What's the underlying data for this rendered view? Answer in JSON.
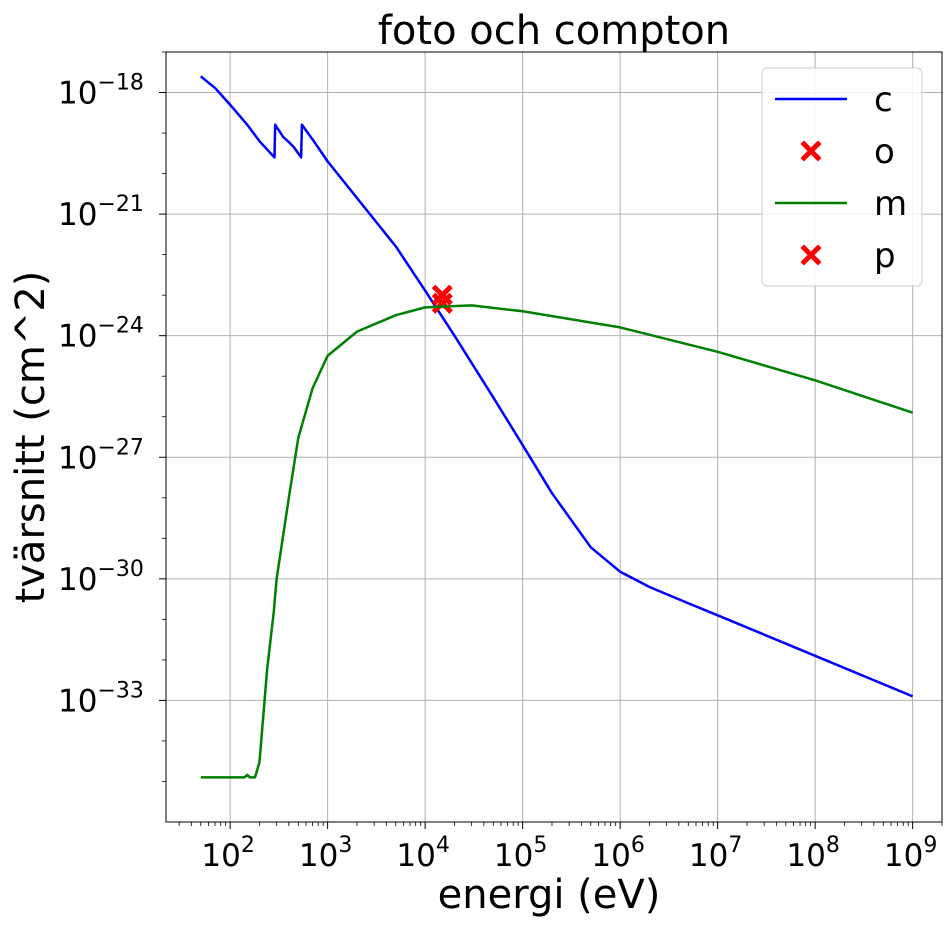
{
  "chart_data": {
    "type": "line",
    "title": "foto och compton",
    "xlabel": "energi (eV)",
    "ylabel": "tvärsnitt (cm^2)",
    "xscale": "log",
    "yscale": "log",
    "xlim": [
      22,
      2000000000
    ],
    "ylim": [
      1e-36,
      1e-17
    ],
    "grid": true,
    "legend_position": "top-right",
    "x_ticks": [
      {
        "base": "10",
        "exp": "2",
        "value": 100
      },
      {
        "base": "10",
        "exp": "3",
        "value": 1000
      },
      {
        "base": "10",
        "exp": "4",
        "value": 10000
      },
      {
        "base": "10",
        "exp": "5",
        "value": 100000
      },
      {
        "base": "10",
        "exp": "6",
        "value": 1000000
      },
      {
        "base": "10",
        "exp": "7",
        "value": 10000000
      },
      {
        "base": "10",
        "exp": "8",
        "value": 100000000
      },
      {
        "base": "10",
        "exp": "9",
        "value": 1000000000
      }
    ],
    "y_ticks": [
      {
        "base": "10",
        "exp": "−18",
        "value": 1e-18
      },
      {
        "base": "10",
        "exp": "−21",
        "value": 1e-21
      },
      {
        "base": "10",
        "exp": "−24",
        "value": 1e-24
      },
      {
        "base": "10",
        "exp": "−27",
        "value": 1e-27
      },
      {
        "base": "10",
        "exp": "−30",
        "value": 1e-30
      },
      {
        "base": "10",
        "exp": "−33",
        "value": 1e-33
      }
    ],
    "series": [
      {
        "name": "c",
        "kind": "line",
        "color": "#0000ff",
        "points": [
          [
            50,
            2.5e-18
          ],
          [
            70,
            1.3e-18
          ],
          [
            100,
            5e-19
          ],
          [
            150,
            1.6e-19
          ],
          [
            200,
            6.3e-20
          ],
          [
            285,
            2.5e-20
          ],
          [
            290,
            1.6e-19
          ],
          [
            350,
            8e-20
          ],
          [
            400,
            6e-20
          ],
          [
            450,
            4.5e-20
          ],
          [
            535,
            2.5e-20
          ],
          [
            545,
            1.6e-19
          ],
          [
            700,
            7e-20
          ],
          [
            1000,
            2e-20
          ],
          [
            2000,
            2.5e-21
          ],
          [
            5000,
            1.6e-22
          ],
          [
            10000,
            1.3e-23
          ],
          [
            20000,
            1e-24
          ],
          [
            50000,
            3e-26
          ],
          [
            100000,
            2e-27
          ],
          [
            200000,
            1.3e-28
          ],
          [
            500000,
            6e-30
          ],
          [
            1000000,
            1.5e-30
          ],
          [
            2000000,
            6.3e-31
          ],
          [
            5000000,
            2.5e-31
          ],
          [
            10000000,
            1.26e-31
          ],
          [
            100000000,
            1.26e-32
          ],
          [
            1000000000,
            1.26e-33
          ]
        ]
      },
      {
        "name": "o",
        "kind": "scatter",
        "color": "#ff0000",
        "points": [
          [
            15000,
            6.3e-24
          ]
        ]
      },
      {
        "name": "m",
        "kind": "line",
        "color": "#008000",
        "points": [
          [
            50,
            1.26e-35
          ],
          [
            100,
            1.26e-35
          ],
          [
            140,
            1.26e-35
          ],
          [
            150,
            1.45e-35
          ],
          [
            160,
            1.26e-35
          ],
          [
            180,
            1.26e-35
          ],
          [
            200,
            3e-35
          ],
          [
            240,
            6e-33
          ],
          [
            280,
            1.5e-31
          ],
          [
            300,
            1e-30
          ],
          [
            400,
            1e-28
          ],
          [
            500,
            3e-27
          ],
          [
            700,
            5e-26
          ],
          [
            1000,
            3.2e-25
          ],
          [
            2000,
            1.26e-24
          ],
          [
            5000,
            3.2e-24
          ],
          [
            10000,
            5e-24
          ],
          [
            30000,
            5.6e-24
          ],
          [
            100000,
            4e-24
          ],
          [
            1000000,
            1.6e-24
          ],
          [
            10000000,
            4e-25
          ],
          [
            100000000,
            7.9e-26
          ],
          [
            1000000000,
            1.26e-26
          ]
        ]
      },
      {
        "name": "p",
        "kind": "scatter",
        "color": "#ff0000",
        "points": [
          [
            15000,
            1e-23
          ]
        ]
      }
    ]
  }
}
